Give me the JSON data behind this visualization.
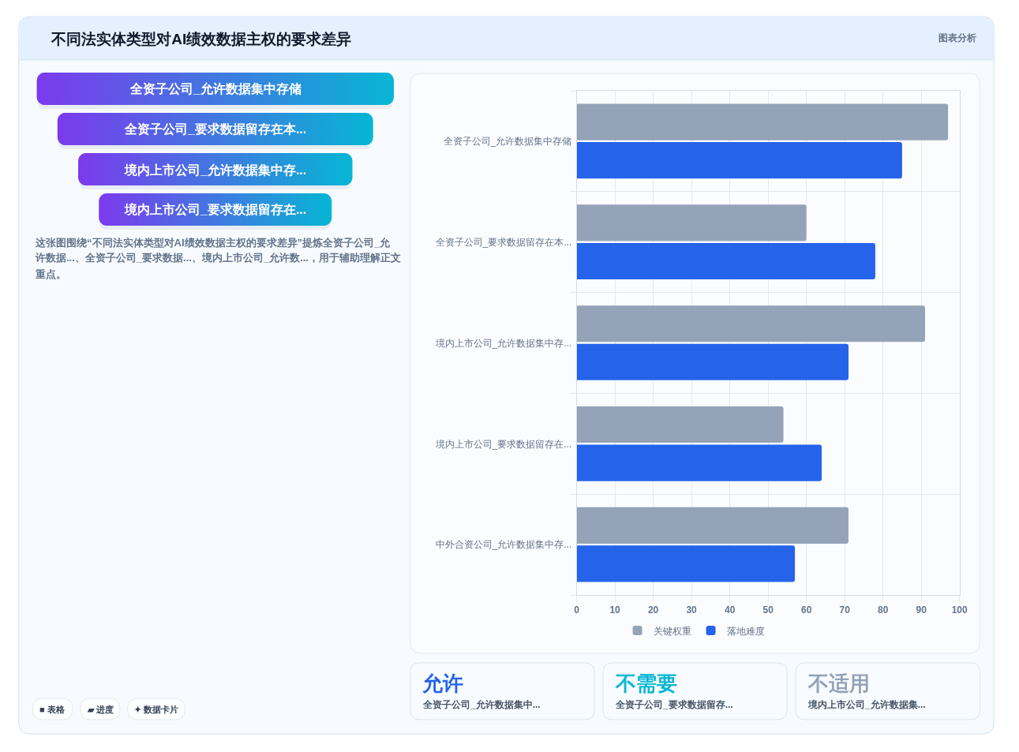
{
  "chart_data": [
    {
      "type": "other",
      "title": "不同法实体类型对AI绩效数据主权的要求差异",
      "subtitle": "图表分析",
      "categories": [
        "全资子公司_允许数据集中存储",
        "全资子公司_要求数据留存在本...",
        "境内上市公司_允许数据集中存...",
        "境内上市公司_要求数据留存在..."
      ],
      "annotations": [
        "这张图围绕“不同法实体类型对AI绩效数据主权的要求差异”提炼全资子公司_允许数据...、全资子公司_要求数据...、境内上市公司_允许数...，用于辅助理解正文重点。",
        "■ 表格",
        "▰ 进度",
        "✦ 数据卡片"
      ]
    },
    {
      "type": "bar",
      "orientation": "horizontal",
      "categories": [
        "全资子公司_允许数据集中存储",
        "全资子公司_要求数据留存在本...",
        "境内上市公司_允许数据集中存...",
        "境内上市公司_要求数据留存在...",
        "中外合资公司_允许数据集中存..."
      ],
      "series": [
        {
          "name": "关键权重",
          "color": "#94a3b8",
          "values": [
            97,
            60,
            91,
            54,
            71
          ]
        },
        {
          "name": "落地难度",
          "color": "#2563eb",
          "values": [
            85,
            78,
            71,
            64,
            57
          ]
        }
      ],
      "xlim": [
        0,
        100
      ],
      "xticks": [
        0,
        10,
        20,
        30,
        40,
        50,
        60,
        70,
        80,
        90,
        100
      ],
      "grid": true,
      "legend": "bottom"
    },
    {
      "type": "other",
      "categories": [
        "允许",
        "不需要",
        "不适用"
      ],
      "annotations": [
        "全资子公司_允许数据集中...",
        "全资子公司_要求数据留存...",
        "境内上市公司_允许数据集..."
      ]
    }
  ]
}
